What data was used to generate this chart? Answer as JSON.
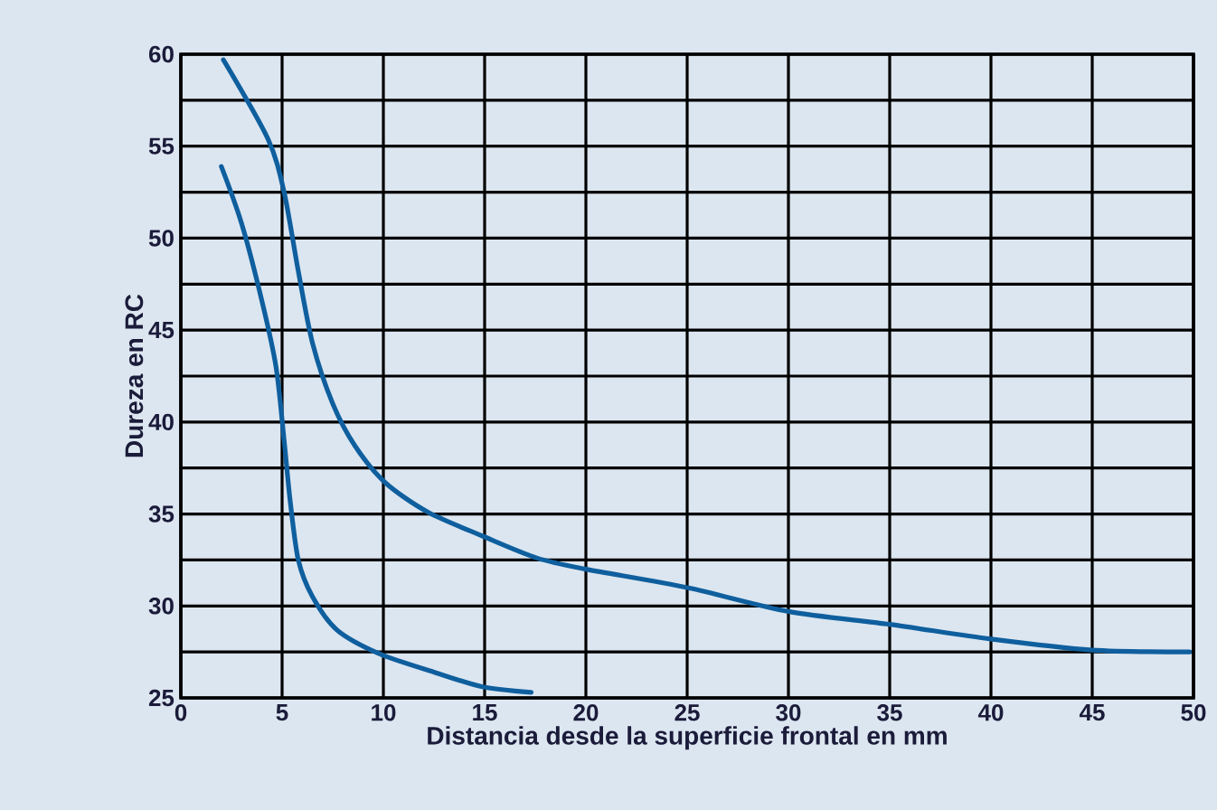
{
  "chart_data": {
    "type": "line",
    "xlabel": "Distancia desde la superficie frontal en mm",
    "ylabel": "Dureza en RC",
    "xlim": [
      0,
      50
    ],
    "ylim": [
      25,
      60
    ],
    "xticks": [
      0,
      5,
      10,
      15,
      20,
      25,
      30,
      35,
      40,
      45,
      50
    ],
    "yticks": [
      25,
      30,
      35,
      40,
      45,
      50,
      55,
      60
    ],
    "grid": true,
    "marker": "none",
    "line_style": "solid",
    "series": [
      {
        "color": "#0f5f9e",
        "x": [
          2.1,
          4.3,
          5.1,
          5.8,
          6.5,
          7.5,
          8.6,
          10.1,
          12.2,
          14.9,
          17.6,
          20,
          25,
          30,
          35,
          40,
          45,
          49.8
        ],
        "values": [
          59.7,
          55.4,
          52.5,
          48.2,
          44.3,
          41.0,
          38.7,
          36.7,
          35.1,
          33.8,
          32.6,
          32.0,
          31.0,
          29.7,
          29.0,
          28.2,
          27.6,
          27.5
        ]
      },
      {
        "color": "#0f5f9e",
        "x": [
          2.0,
          3.0,
          4.0,
          4.7,
          5.1,
          5.4,
          5.8,
          6.5,
          7.7,
          9.8,
          12.5,
          14.9,
          17.3
        ],
        "values": [
          53.9,
          50.8,
          46.6,
          43.0,
          39.0,
          35.7,
          32.5,
          30.5,
          28.7,
          27.4,
          26.4,
          25.6,
          25.3
        ]
      }
    ]
  }
}
